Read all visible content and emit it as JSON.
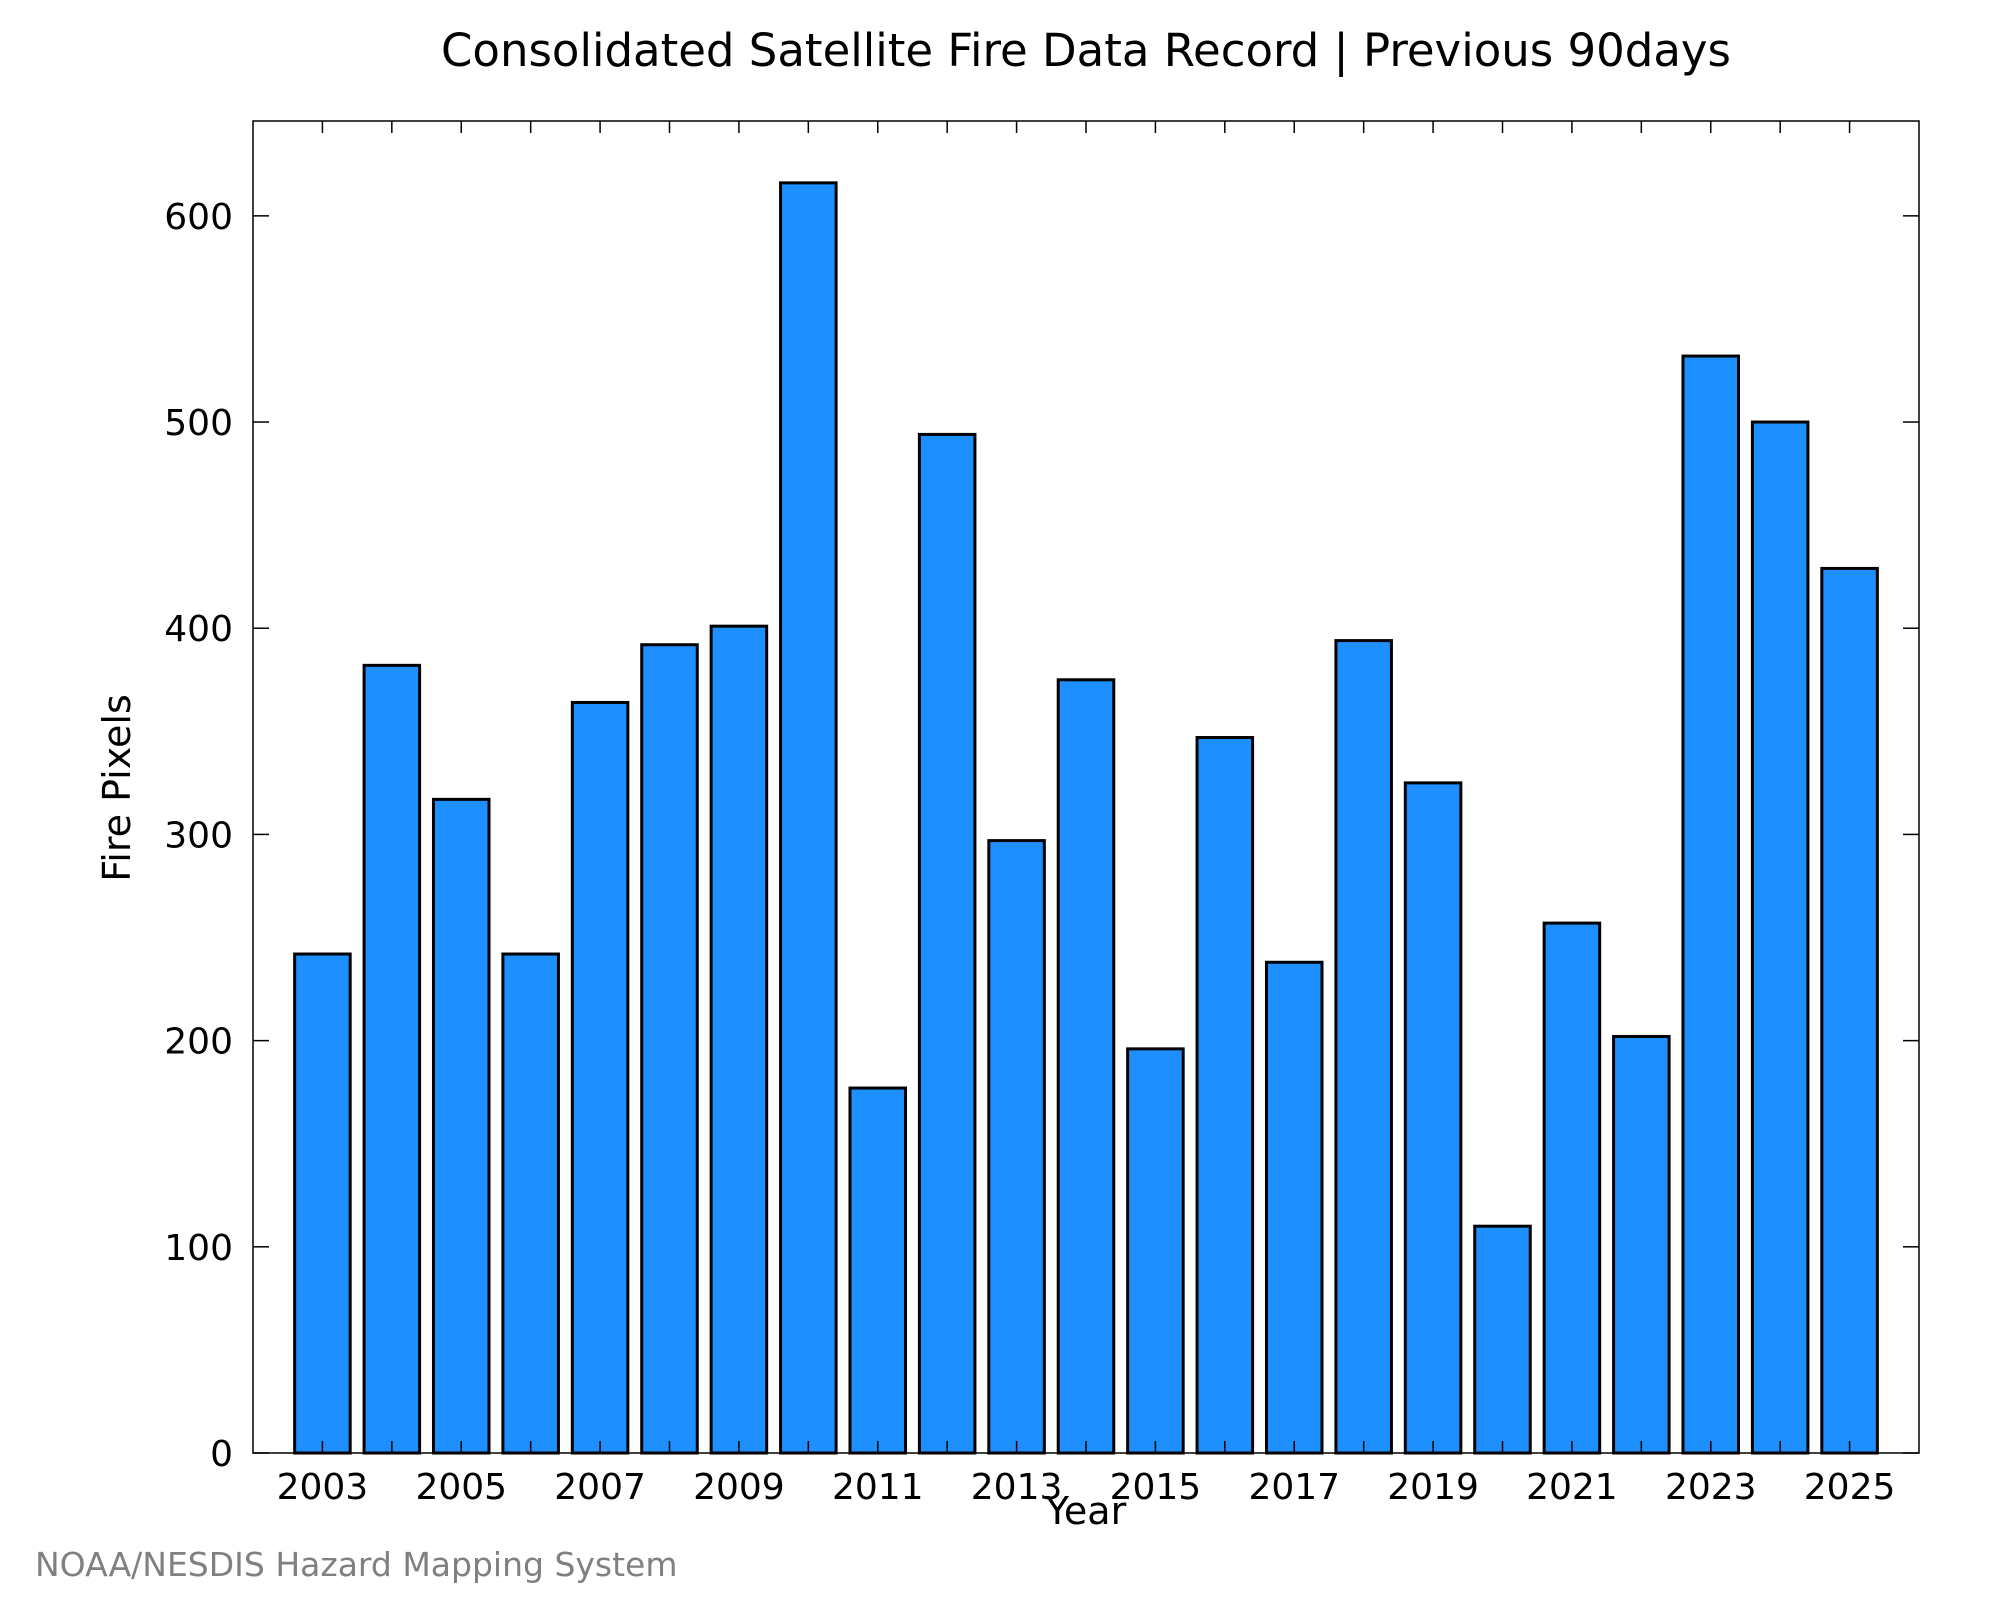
{
  "chart_data": {
    "type": "bar",
    "title": "Consolidated Satellite Fire Data Record | Previous 90days",
    "xlabel": "Year",
    "ylabel": "Fire Pixels",
    "categories": [
      "2003",
      "2004",
      "2005",
      "2006",
      "2007",
      "2008",
      "2009",
      "2010",
      "2011",
      "2012",
      "2013",
      "2014",
      "2015",
      "2016",
      "2017",
      "2018",
      "2019",
      "2020",
      "2021",
      "2022",
      "2023",
      "2024",
      "2025"
    ],
    "values": [
      242,
      382,
      317,
      242,
      364,
      392,
      401,
      616,
      177,
      494,
      297,
      375,
      196,
      347,
      238,
      394,
      325,
      110,
      257,
      202,
      532,
      500,
      429
    ],
    "x_tick_labels": [
      "2003",
      "2005",
      "2007",
      "2009",
      "2011",
      "2013",
      "2015",
      "2017",
      "2019",
      "2021",
      "2023",
      "2025"
    ],
    "y_ticks": [
      0,
      100,
      200,
      300,
      400,
      500,
      600
    ],
    "ylim": [
      0,
      646
    ],
    "bar_color": "#1E8FFF",
    "bar_edge_color": "#000000",
    "grid": false,
    "legend": false
  },
  "credit": "NOAA/NESDIS Hazard Mapping System"
}
